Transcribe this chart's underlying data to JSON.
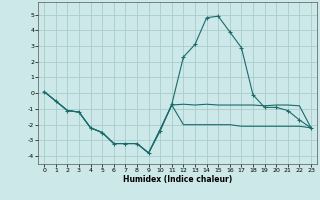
{
  "xlabel": "Humidex (Indice chaleur)",
  "background_color": "#cce8e8",
  "grid_color": "#aacccc",
  "line_color": "#1a6b6b",
  "xlim": [
    -0.5,
    23.5
  ],
  "ylim": [
    -4.5,
    5.8
  ],
  "xticks": [
    0,
    1,
    2,
    3,
    4,
    5,
    6,
    7,
    8,
    9,
    10,
    11,
    12,
    13,
    14,
    15,
    16,
    17,
    18,
    19,
    20,
    21,
    22,
    23
  ],
  "yticks": [
    -4,
    -3,
    -2,
    -1,
    0,
    1,
    2,
    3,
    4,
    5
  ],
  "series": [
    {
      "x": [
        0,
        1,
        2,
        3,
        4,
        5,
        6,
        7,
        8,
        9,
        10,
        11,
        12,
        13,
        14,
        15,
        16,
        17,
        18,
        19,
        20,
        21,
        22,
        23
      ],
      "y": [
        0.1,
        -0.5,
        -1.1,
        -1.2,
        -2.2,
        -2.5,
        -3.2,
        -3.2,
        -3.2,
        -3.8,
        -2.3,
        -0.75,
        -0.7,
        -0.75,
        -0.7,
        -0.75,
        -0.75,
        -0.75,
        -0.75,
        -0.8,
        -0.75,
        -0.75,
        -0.8,
        -2.2
      ],
      "marker": null,
      "linestyle": "-"
    },
    {
      "x": [
        0,
        1,
        2,
        3,
        4,
        5,
        6,
        7,
        8,
        9,
        10,
        11,
        12,
        13,
        14,
        15,
        16,
        17,
        18,
        19,
        20,
        21,
        22,
        23
      ],
      "y": [
        0.1,
        -0.5,
        -1.1,
        -1.2,
        -2.2,
        -2.5,
        -3.2,
        -3.2,
        -3.2,
        -3.8,
        -2.3,
        -0.75,
        -2.0,
        -2.0,
        -2.0,
        -2.0,
        -2.0,
        -2.1,
        -2.1,
        -2.1,
        -2.1,
        -2.1,
        -2.1,
        -2.2
      ],
      "marker": null,
      "linestyle": "-"
    },
    {
      "x": [
        0,
        1,
        2,
        3,
        4,
        5,
        6,
        7,
        8,
        9,
        10,
        11,
        12,
        13,
        14,
        15,
        16,
        17,
        18,
        19,
        20,
        21,
        22,
        23
      ],
      "y": [
        0.1,
        -0.5,
        -1.1,
        -1.2,
        -2.2,
        -2.5,
        -3.2,
        -3.2,
        -3.2,
        -3.8,
        -2.4,
        -0.7,
        2.3,
        3.1,
        4.8,
        4.9,
        3.9,
        2.9,
        -0.1,
        -0.9,
        -0.9,
        -1.1,
        -1.7,
        -2.2
      ],
      "marker": "+",
      "linestyle": "-"
    }
  ]
}
